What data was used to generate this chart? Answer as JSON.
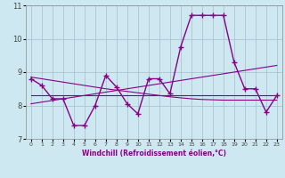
{
  "xlabel": "Windchill (Refroidissement éolien,°C)",
  "bg_color": "#cde8f0",
  "grid_color": "#aabbcc",
  "line_color": "#880088",
  "xlim": [
    -0.5,
    23.5
  ],
  "ylim": [
    7,
    11
  ],
  "yticks": [
    7,
    8,
    9,
    10,
    11
  ],
  "xticks": [
    0,
    1,
    2,
    3,
    4,
    5,
    6,
    7,
    8,
    9,
    10,
    11,
    12,
    13,
    14,
    15,
    16,
    17,
    18,
    19,
    20,
    21,
    22,
    23
  ],
  "hours": [
    0,
    1,
    2,
    3,
    4,
    5,
    6,
    7,
    8,
    9,
    10,
    11,
    12,
    13,
    14,
    15,
    16,
    17,
    18,
    19,
    20,
    21,
    22,
    23
  ],
  "temp": [
    8.8,
    8.6,
    8.2,
    8.2,
    7.4,
    7.4,
    8.0,
    8.9,
    8.55,
    8.05,
    7.75,
    8.8,
    8.8,
    8.35,
    9.75,
    10.7,
    10.7,
    10.7,
    10.7,
    9.3,
    8.5,
    8.5,
    7.8,
    8.3
  ],
  "trend_up": [
    8.05,
    8.1,
    8.15,
    8.2,
    8.25,
    8.3,
    8.35,
    8.4,
    8.45,
    8.5,
    8.55,
    8.6,
    8.65,
    8.7,
    8.75,
    8.8,
    8.85,
    8.9,
    8.95,
    9.0,
    9.05,
    9.1,
    9.15,
    9.2
  ],
  "trend_down": [
    8.85,
    8.8,
    8.75,
    8.7,
    8.65,
    8.6,
    8.55,
    8.5,
    8.46,
    8.42,
    8.38,
    8.34,
    8.3,
    8.26,
    8.23,
    8.2,
    8.18,
    8.17,
    8.16,
    8.16,
    8.16,
    8.16,
    8.16,
    8.16
  ],
  "flat": [
    8.3,
    8.3,
    8.3,
    8.3,
    8.3,
    8.3,
    8.3,
    8.3,
    8.3,
    8.3,
    8.3,
    8.3,
    8.3,
    8.3,
    8.3,
    8.3,
    8.3,
    8.3,
    8.3,
    8.3,
    8.3,
    8.3,
    8.3,
    8.3
  ]
}
